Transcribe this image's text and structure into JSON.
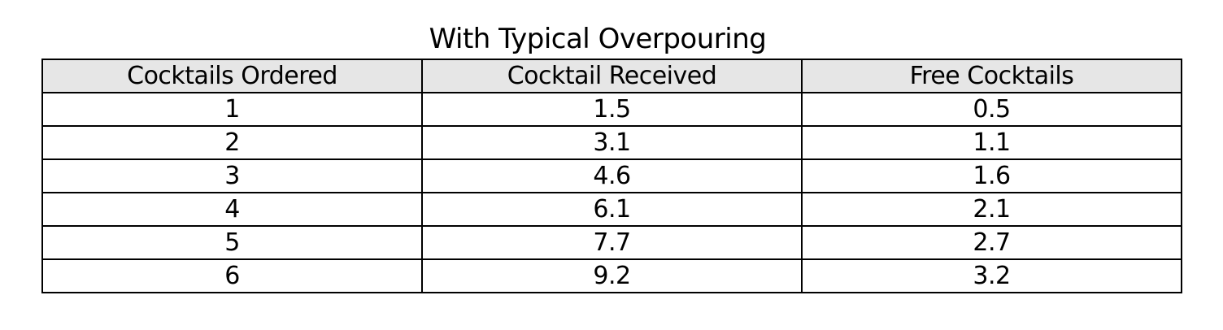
{
  "table": {
    "title": "With Typical Overpouring",
    "columns": [
      "Cocktails Ordered",
      "Cocktail Received",
      "Free Cocktails"
    ],
    "rows": [
      [
        "1",
        "1.5",
        "0.5"
      ],
      [
        "2",
        "3.1",
        "1.1"
      ],
      [
        "3",
        "4.6",
        "1.6"
      ],
      [
        "4",
        "6.1",
        "2.1"
      ],
      [
        "5",
        "7.7",
        "2.7"
      ],
      [
        "6",
        "9.2",
        "3.2"
      ]
    ]
  }
}
